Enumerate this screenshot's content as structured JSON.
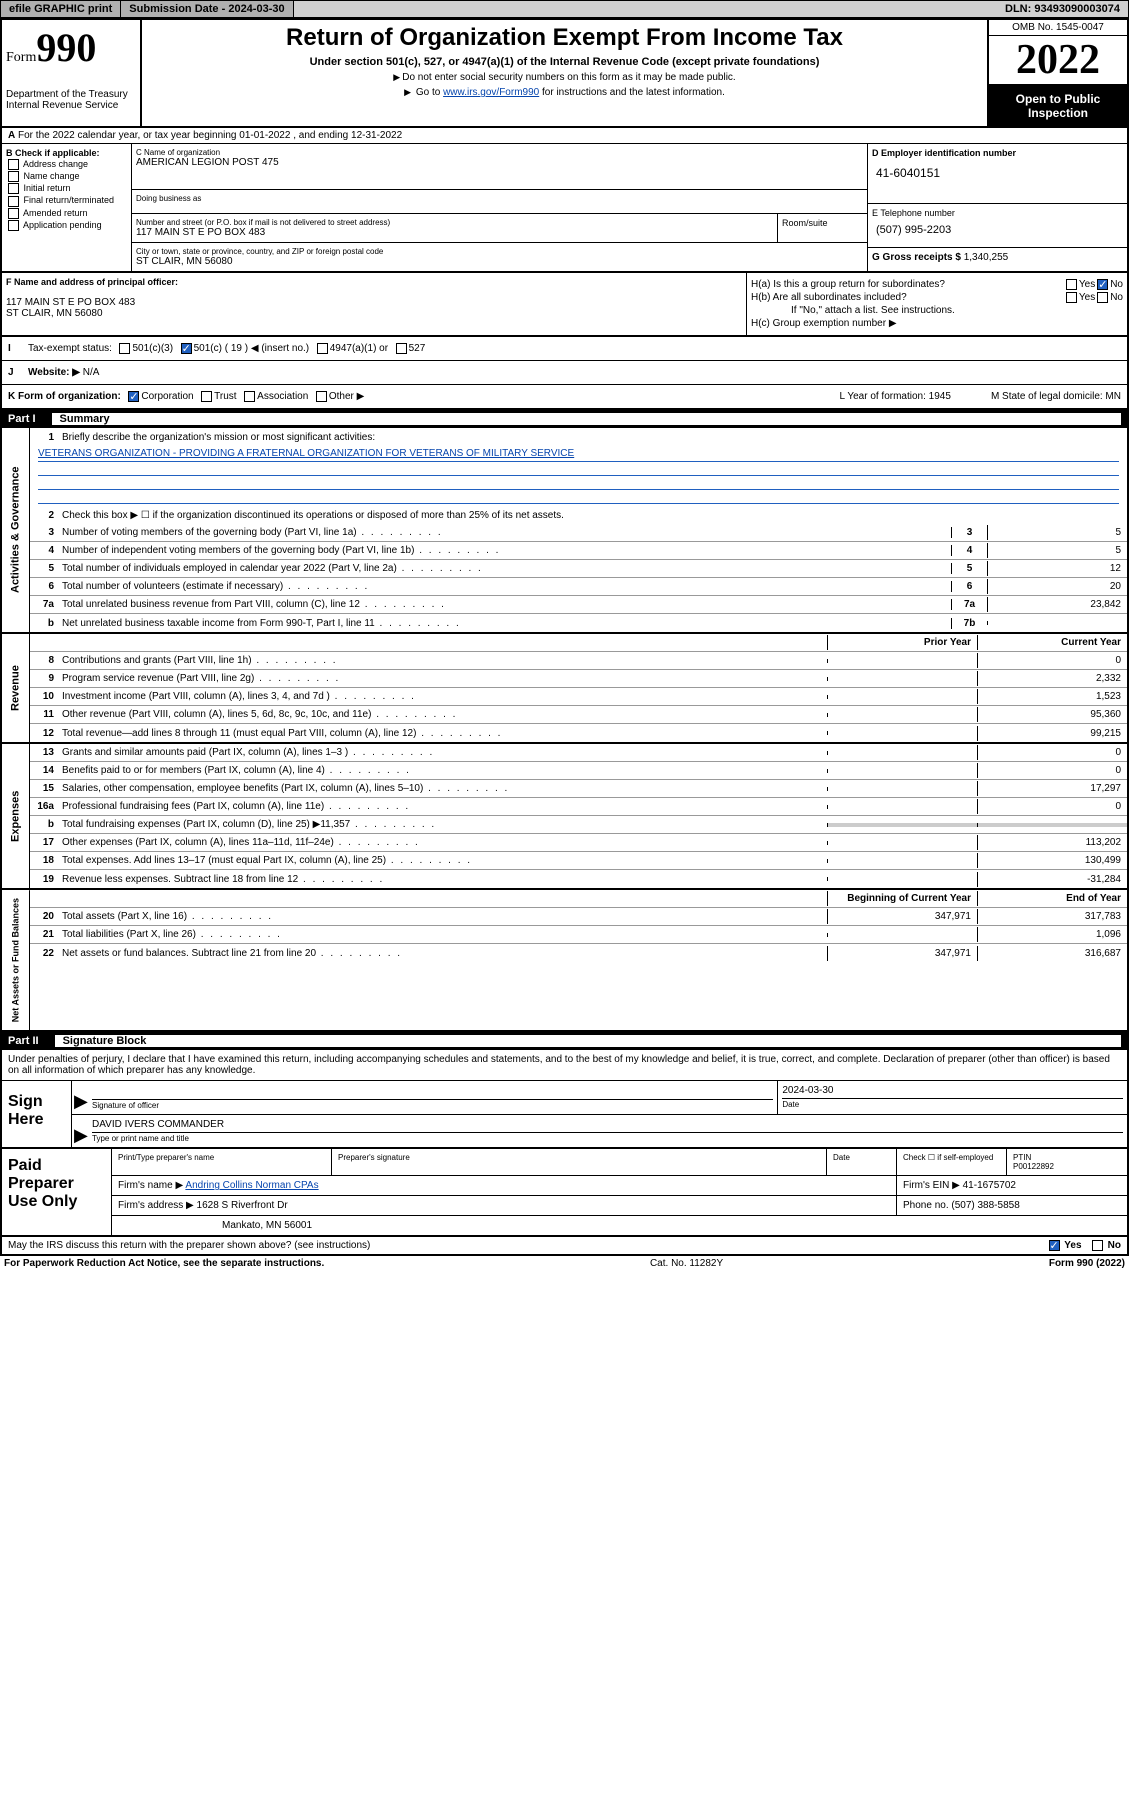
{
  "topbar": {
    "efile": "efile GRAPHIC print",
    "submission_label": "Submission Date - ",
    "submission_date": "2024-03-30",
    "dln_label": "DLN: ",
    "dln": "93493090003074"
  },
  "header": {
    "form_word": "Form",
    "form_num": "990",
    "dept": "Department of the Treasury",
    "irs": "Internal Revenue Service",
    "title": "Return of Organization Exempt From Income Tax",
    "subtitle": "Under section 501(c), 527, or 4947(a)(1) of the Internal Revenue Code (except private foundations)",
    "note1": "Do not enter social security numbers on this form as it may be made public.",
    "note2_pre": "Go to ",
    "note2_link": "www.irs.gov/Form990",
    "note2_post": " for instructions and the latest information.",
    "omb": "OMB No. 1545-0047",
    "year": "2022",
    "open": "Open to Public Inspection"
  },
  "row_a": {
    "text": "For the 2022 calendar year, or tax year beginning 01-01-2022   , and ending 12-31-2022",
    "label_a": "A"
  },
  "col_b": {
    "header": "B Check if applicable:",
    "opts": [
      "Address change",
      "Name change",
      "Initial return",
      "Final return/terminated",
      "Amended return",
      "Application pending"
    ]
  },
  "col_c": {
    "name_label": "C Name of organization",
    "name": "AMERICAN LEGION POST 475",
    "dba_label": "Doing business as",
    "addr_label": "Number and street (or P.O. box if mail is not delivered to street address)",
    "addr": "117 MAIN ST E PO BOX 483",
    "room_label": "Room/suite",
    "city_label": "City or town, state or province, country, and ZIP or foreign postal code",
    "city": "ST CLAIR, MN  56080"
  },
  "col_de": {
    "d_label": "D Employer identification number",
    "d_val": "41-6040151",
    "e_label": "E Telephone number",
    "e_val": "(507) 995-2203",
    "g_label": "G Gross receipts $ ",
    "g_val": "1,340,255"
  },
  "block_f": {
    "f_label": "F  Name and address of principal officer:",
    "f_addr1": "117 MAIN ST E PO BOX 483",
    "f_addr2": "ST CLAIR, MN  56080"
  },
  "block_h": {
    "ha": "H(a)  Is this a group return for subordinates?",
    "hb": "H(b)  Are all subordinates included?",
    "hb_note": "If \"No,\" attach a list. See instructions.",
    "hc": "H(c)  Group exemption number ▶",
    "yes": "Yes",
    "no": "No"
  },
  "row_i": {
    "label": "I",
    "text": "Tax-exempt status:",
    "c3": "501(c)(3)",
    "c_other": "501(c) ( 19 ) ◀ (insert no.)",
    "a1": "4947(a)(1) or",
    "s527": "527"
  },
  "row_j": {
    "label": "J",
    "text": "Website: ▶",
    "val": "N/A"
  },
  "row_k": {
    "label": "K Form of organization:",
    "corp": "Corporation",
    "trust": "Trust",
    "assoc": "Association",
    "other": "Other ▶",
    "l": "L Year of formation: 1945",
    "m": "M State of legal domicile: MN"
  },
  "part1": {
    "num": "Part I",
    "title": "Summary"
  },
  "sidelabels": {
    "ag": "Activities & Governance",
    "rev": "Revenue",
    "exp": "Expenses",
    "na": "Net Assets or Fund Balances"
  },
  "summary": {
    "l1": "Briefly describe the organization's mission or most significant activities:",
    "mission": "VETERANS ORGANIZATION - PROVIDING A FRATERNAL ORGANIZATION FOR VETERANS OF MILITARY SERVICE",
    "l2": "Check this box ▶ ☐  if the organization discontinued its operations or disposed of more than 25% of its net assets.",
    "rows_ag": [
      {
        "n": "3",
        "t": "Number of voting members of the governing body (Part VI, line 1a)",
        "cn": "3",
        "cv": "5"
      },
      {
        "n": "4",
        "t": "Number of independent voting members of the governing body (Part VI, line 1b)",
        "cn": "4",
        "cv": "5"
      },
      {
        "n": "5",
        "t": "Total number of individuals employed in calendar year 2022 (Part V, line 2a)",
        "cn": "5",
        "cv": "12"
      },
      {
        "n": "6",
        "t": "Total number of volunteers (estimate if necessary)",
        "cn": "6",
        "cv": "20"
      },
      {
        "n": "7a",
        "t": "Total unrelated business revenue from Part VIII, column (C), line 12",
        "cn": "7a",
        "cv": "23,842"
      },
      {
        "n": "b",
        "t": "Net unrelated business taxable income from Form 990-T, Part I, line 11",
        "cn": "7b",
        "cv": ""
      }
    ],
    "col_hdr1": "Prior Year",
    "col_hdr2": "Current Year",
    "rows_rev": [
      {
        "n": "8",
        "t": "Contributions and grants (Part VIII, line 1h)",
        "c1": "",
        "c2": "0"
      },
      {
        "n": "9",
        "t": "Program service revenue (Part VIII, line 2g)",
        "c1": "",
        "c2": "2,332"
      },
      {
        "n": "10",
        "t": "Investment income (Part VIII, column (A), lines 3, 4, and 7d )",
        "c1": "",
        "c2": "1,523"
      },
      {
        "n": "11",
        "t": "Other revenue (Part VIII, column (A), lines 5, 6d, 8c, 9c, 10c, and 11e)",
        "c1": "",
        "c2": "95,360"
      },
      {
        "n": "12",
        "t": "Total revenue—add lines 8 through 11 (must equal Part VIII, column (A), line 12)",
        "c1": "",
        "c2": "99,215"
      }
    ],
    "rows_exp": [
      {
        "n": "13",
        "t": "Grants and similar amounts paid (Part IX, column (A), lines 1–3 )",
        "c1": "",
        "c2": "0"
      },
      {
        "n": "14",
        "t": "Benefits paid to or for members (Part IX, column (A), line 4)",
        "c1": "",
        "c2": "0"
      },
      {
        "n": "15",
        "t": "Salaries, other compensation, employee benefits (Part IX, column (A), lines 5–10)",
        "c1": "",
        "c2": "17,297"
      },
      {
        "n": "16a",
        "t": "Professional fundraising fees (Part IX, column (A), line 11e)",
        "c1": "",
        "c2": "0"
      },
      {
        "n": "b",
        "t": "Total fundraising expenses (Part IX, column (D), line 25) ▶11,357",
        "c1": "gray",
        "c2": "gray"
      },
      {
        "n": "17",
        "t": "Other expenses (Part IX, column (A), lines 11a–11d, 11f–24e)",
        "c1": "",
        "c2": "113,202"
      },
      {
        "n": "18",
        "t": "Total expenses. Add lines 13–17 (must equal Part IX, column (A), line 25)",
        "c1": "",
        "c2": "130,499"
      },
      {
        "n": "19",
        "t": "Revenue less expenses. Subtract line 18 from line 12",
        "c1": "",
        "c2": "-31,284"
      }
    ],
    "na_hdr1": "Beginning of Current Year",
    "na_hdr2": "End of Year",
    "rows_na": [
      {
        "n": "20",
        "t": "Total assets (Part X, line 16)",
        "c1": "347,971",
        "c2": "317,783"
      },
      {
        "n": "21",
        "t": "Total liabilities (Part X, line 26)",
        "c1": "",
        "c2": "1,096"
      },
      {
        "n": "22",
        "t": "Net assets or fund balances. Subtract line 21 from line 20",
        "c1": "347,971",
        "c2": "316,687"
      }
    ]
  },
  "part2": {
    "num": "Part II",
    "title": "Signature Block"
  },
  "sig": {
    "intro": "Under penalties of perjury, I declare that I have examined this return, including accompanying schedules and statements, and to the best of my knowledge and belief, it is true, correct, and complete. Declaration of preparer (other than officer) is based on all information of which preparer has any knowledge.",
    "sign_here": "Sign Here",
    "sig_officer": "Signature of officer",
    "date_label": "Date",
    "date_val": "2024-03-30",
    "name": "DAVID IVERS COMMANDER",
    "name_label": "Type or print name and title"
  },
  "paid": {
    "label": "Paid Preparer Use Only",
    "h1": "Print/Type preparer's name",
    "h2": "Preparer's signature",
    "h3": "Date",
    "h4_pre": "Check ☐ if self-employed",
    "h5": "PTIN",
    "ptin": "P00122892",
    "firm_name_lbl": "Firm's name    ▶",
    "firm_name": "Andring Collins Norman CPAs",
    "firm_ein_lbl": "Firm's EIN ▶",
    "firm_ein": "41-1675702",
    "firm_addr_lbl": "Firm's address ▶",
    "firm_addr1": "1628 S Riverfront Dr",
    "firm_addr2": "Mankato, MN  56001",
    "phone_lbl": "Phone no. ",
    "phone": "(507) 388-5858"
  },
  "discuss": {
    "text": "May the IRS discuss this return with the preparer shown above? (see instructions)",
    "yes": "Yes",
    "no": "No"
  },
  "footer": {
    "left": "For Paperwork Reduction Act Notice, see the separate instructions.",
    "mid": "Cat. No. 11282Y",
    "right": "Form 990 (2022)"
  }
}
